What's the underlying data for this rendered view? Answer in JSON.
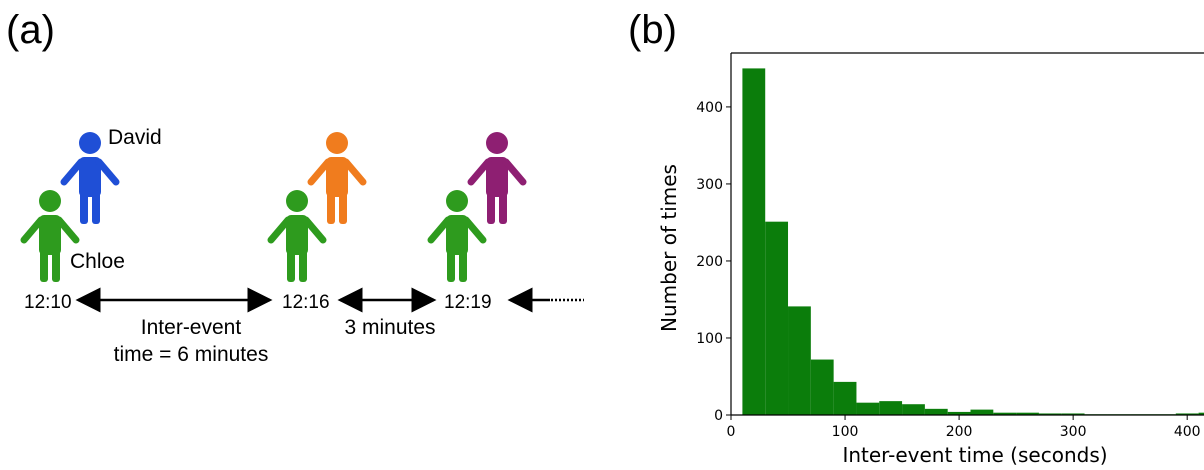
{
  "panels": {
    "a_label": "(a)",
    "b_label": "(b)"
  },
  "people": {
    "david": {
      "name": "David",
      "color": "#1f4fd6"
    },
    "chloe": {
      "name": "Chloe",
      "color": "#2e9b1e"
    },
    "orange_color": "#f07c1e",
    "purple_color": "#8e1f72"
  },
  "timeline": {
    "times": [
      "12:10",
      "12:16",
      "12:19"
    ],
    "gap1": [
      "Inter-event",
      "time = 6 minutes"
    ],
    "gap2": "3 minutes"
  },
  "chart_data": {
    "type": "bar",
    "xlabel": "Inter-event time (seconds)",
    "ylabel": "Number of times",
    "xlim": [
      0,
      420
    ],
    "ylim": [
      0,
      470
    ],
    "xticks": [
      0,
      100,
      200,
      300,
      400
    ],
    "yticks": [
      0,
      100,
      200,
      300,
      400
    ],
    "bar_color": "#0b7d0b",
    "bin_width": 20,
    "bins": [
      {
        "x0": 10,
        "value": 450
      },
      {
        "x0": 30,
        "value": 251
      },
      {
        "x0": 50,
        "value": 141
      },
      {
        "x0": 70,
        "value": 72
      },
      {
        "x0": 90,
        "value": 43
      },
      {
        "x0": 110,
        "value": 16
      },
      {
        "x0": 130,
        "value": 18
      },
      {
        "x0": 150,
        "value": 14
      },
      {
        "x0": 170,
        "value": 8
      },
      {
        "x0": 190,
        "value": 4
      },
      {
        "x0": 210,
        "value": 7
      },
      {
        "x0": 230,
        "value": 3
      },
      {
        "x0": 250,
        "value": 3
      },
      {
        "x0": 270,
        "value": 2
      },
      {
        "x0": 290,
        "value": 2
      },
      {
        "x0": 310,
        "value": 1
      },
      {
        "x0": 330,
        "value": 1
      },
      {
        "x0": 350,
        "value": 1
      },
      {
        "x0": 370,
        "value": 1
      },
      {
        "x0": 390,
        "value": 2
      },
      {
        "x0": 410,
        "value": 3
      }
    ]
  }
}
